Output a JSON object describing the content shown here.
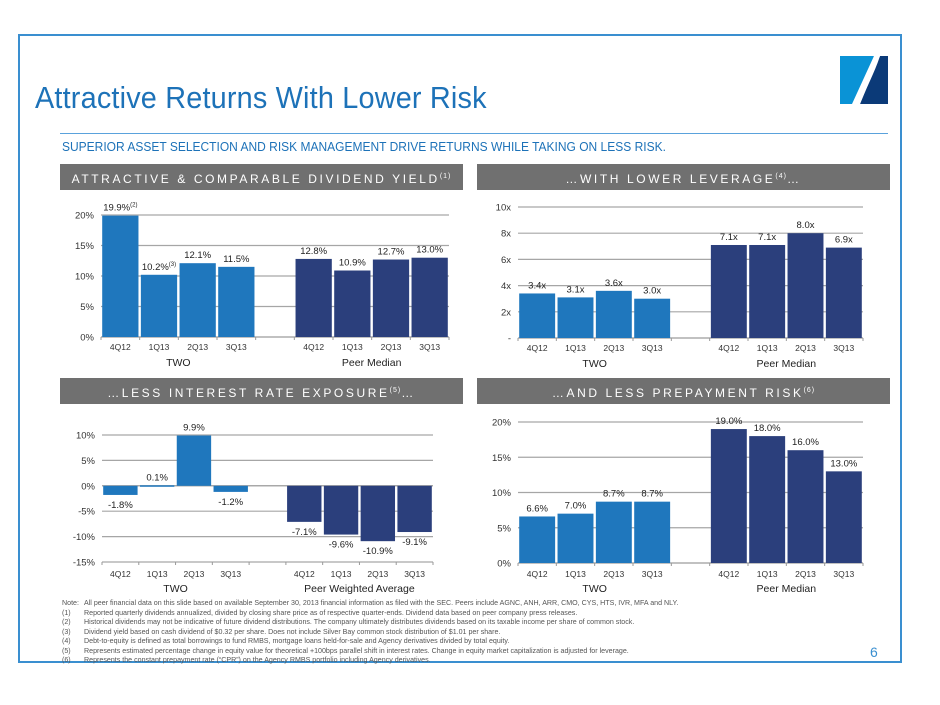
{
  "slide": {
    "title": "Attractive Returns With Lower Risk",
    "subtitle": "SUPERIOR ASSET SELECTION AND RISK MANAGEMENT DRIVE RETURNS WHILE TAKING ON LESS RISK.",
    "page_number": "6",
    "logo_icon": "company-logo-icon"
  },
  "colors": {
    "two_bar": "#1f77bd",
    "peer_bar": "#2b3f7c",
    "header_bg": "#707070",
    "title": "#1d72b8",
    "frame": "#3a8fd0",
    "gridline": "#a6a6a6"
  },
  "headers": [
    {
      "text": "ATTRACTIVE & COMPARABLE DIVIDEND YIELD",
      "sup": "(1)",
      "suffix": ""
    },
    {
      "text": "…WITH LOWER LEVERAGE",
      "sup": "(4)",
      "suffix": "…"
    },
    {
      "text": "…LESS INTEREST RATE EXPOSURE",
      "sup": "(5)",
      "suffix": "…"
    },
    {
      "text": "…AND LESS PREPAYMENT RISK",
      "sup": "(6)",
      "suffix": ""
    }
  ],
  "chart_data": [
    {
      "type": "bar",
      "title": "ATTRACTIVE & COMPARABLE DIVIDEND YIELD(1)",
      "categories": [
        "4Q12",
        "1Q13",
        "2Q13",
        "3Q13",
        "4Q12",
        "1Q13",
        "2Q13",
        "3Q13"
      ],
      "groups": [
        "TWO",
        "Peer Median"
      ],
      "series": [
        {
          "name": "TWO",
          "values": [
            19.9,
            10.2,
            12.1,
            11.5
          ],
          "labels": [
            "19.9%",
            "10.2%",
            "12.1%",
            "11.5%"
          ],
          "label_sups": [
            "(2)",
            "(3)",
            "",
            ""
          ]
        },
        {
          "name": "Peer Median",
          "values": [
            12.8,
            10.9,
            12.7,
            13.0
          ],
          "labels": [
            "12.8%",
            "10.9%",
            "12.7%",
            "13.0%"
          ],
          "label_sups": [
            "",
            "",
            "",
            ""
          ]
        }
      ],
      "ylim": [
        0,
        20
      ],
      "yticks": [
        0,
        5,
        10,
        15,
        20
      ],
      "ytick_labels": [
        "0%",
        "5%",
        "10%",
        "15%",
        "20%"
      ],
      "grid": true,
      "xlabel": "",
      "ylabel": ""
    },
    {
      "type": "bar",
      "title": "…WITH LOWER LEVERAGE(4)…",
      "categories": [
        "4Q12",
        "1Q13",
        "2Q13",
        "3Q13",
        "4Q12",
        "1Q13",
        "2Q13",
        "3Q13"
      ],
      "groups": [
        "TWO",
        "Peer Median"
      ],
      "series": [
        {
          "name": "TWO",
          "values": [
            3.4,
            3.1,
            3.6,
            3.0
          ],
          "labels": [
            "3.4x",
            "3.1x",
            "3.6x",
            "3.0x"
          ],
          "label_sups": [
            "",
            "",
            "",
            ""
          ]
        },
        {
          "name": "Peer Median",
          "values": [
            7.1,
            7.1,
            8.0,
            6.9
          ],
          "labels": [
            "7.1x",
            "7.1x",
            "8.0x",
            "6.9x"
          ],
          "label_sups": [
            "",
            "",
            "",
            ""
          ]
        }
      ],
      "ylim": [
        0,
        10
      ],
      "yticks": [
        0,
        2,
        4,
        6,
        8,
        10
      ],
      "ytick_labels": [
        "-",
        "2x",
        "4x",
        "6x",
        "8x",
        "10x"
      ],
      "grid": true,
      "xlabel": "",
      "ylabel": ""
    },
    {
      "type": "bar",
      "title": "…LESS INTEREST RATE EXPOSURE(5)…",
      "categories": [
        "4Q12",
        "1Q13",
        "2Q13",
        "3Q13",
        "4Q12",
        "1Q13",
        "2Q13",
        "3Q13"
      ],
      "groups": [
        "TWO",
        "Peer Weighted Average"
      ],
      "series": [
        {
          "name": "TWO",
          "values": [
            -1.8,
            0.1,
            9.9,
            -1.2
          ],
          "labels": [
            "-1.8%",
            "0.1%",
            "9.9%",
            "-1.2%"
          ],
          "label_sups": [
            "",
            "",
            "",
            ""
          ]
        },
        {
          "name": "Peer Weighted Average",
          "values": [
            -7.1,
            -9.6,
            -10.9,
            -9.1
          ],
          "labels": [
            "-7.1%",
            "-9.6%",
            "-10.9%",
            "-9.1%"
          ],
          "label_sups": [
            "",
            "",
            "",
            ""
          ]
        }
      ],
      "ylim": [
        -15,
        10
      ],
      "yticks": [
        -15,
        -10,
        -5,
        0,
        5,
        10
      ],
      "ytick_labels": [
        "-15%",
        "-10%",
        "-5%",
        "0%",
        "5%",
        "10%"
      ],
      "grid": true,
      "xlabel": "",
      "ylabel": ""
    },
    {
      "type": "bar",
      "title": "…AND LESS PREPAYMENT RISK(6)",
      "categories": [
        "4Q12",
        "1Q13",
        "2Q13",
        "3Q13",
        "4Q12",
        "1Q13",
        "2Q13",
        "3Q13"
      ],
      "groups": [
        "TWO",
        "Peer Median"
      ],
      "series": [
        {
          "name": "TWO",
          "values": [
            6.6,
            7.0,
            8.7,
            8.7
          ],
          "labels": [
            "6.6%",
            "7.0%",
            "8.7%",
            "8.7%"
          ],
          "label_sups": [
            "",
            "",
            "",
            ""
          ]
        },
        {
          "name": "Peer Median",
          "values": [
            19.0,
            18.0,
            16.0,
            13.0
          ],
          "labels": [
            "19.0%",
            "18.0%",
            "16.0%",
            "13.0%"
          ],
          "label_sups": [
            "",
            "",
            "",
            ""
          ]
        }
      ],
      "ylim": [
        0,
        20
      ],
      "yticks": [
        0,
        5,
        10,
        15,
        20
      ],
      "ytick_labels": [
        "0%",
        "5%",
        "10%",
        "15%",
        "20%"
      ],
      "grid": true,
      "xlabel": "",
      "ylabel": ""
    }
  ],
  "notes": [
    {
      "key": "Note:",
      "text": "All peer financial data on this slide based on available September 30, 2013 financial information as filed with the SEC.  Peers include AGNC, ANH, ARR, CMO, CYS, HTS, IVR, MFA and NLY."
    },
    {
      "key": "(1)",
      "text": "Reported quarterly dividends annualized, divided by closing share price as of respective quarter-ends. Dividend data based on peer company press releases."
    },
    {
      "key": "(2)",
      "text": "Historical dividends may not be indicative of future dividend distributions. The company ultimately distributes dividends based on its taxable income per share of common stock."
    },
    {
      "key": "(3)",
      "text": "Dividend yield based on cash dividend of $0.32 per share. Does not include Silver Bay common stock distribution of $1.01 per share."
    },
    {
      "key": "(4)",
      "text": "Debt-to-equity is defined as total borrowings to fund RMBS, mortgage loans held-for-sale and Agency derivatives divided by total equity."
    },
    {
      "key": "(5)",
      "text": "Represents estimated percentage change in equity value for theoretical +100bps parallel shift in interest rates. Change in equity market capitalization is adjusted for leverage."
    },
    {
      "key": "(6)",
      "text": "Represents the constant prepayment rate (“CPR”) on the Agency RMBS portfolio including Agency derivatives."
    }
  ]
}
